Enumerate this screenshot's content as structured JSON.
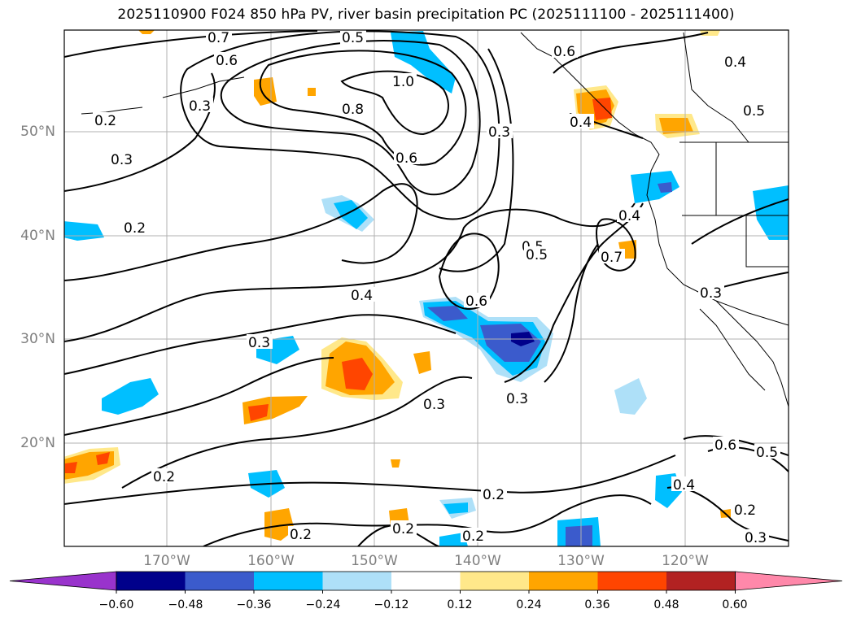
{
  "title": "2025110900 F024 850 hPa PV, river basin precipitation PC (2025111100 - 2025111400)",
  "axes": {
    "lat_labels": [
      "50°N",
      "40°N",
      "30°N",
      "20°N"
    ],
    "lon_labels": [
      "170°W",
      "160°W",
      "150°W",
      "140°W",
      "130°W",
      "120°W"
    ]
  },
  "contour_labels": [
    "0.7",
    "0.5",
    "0.6",
    "1.0",
    "0.8",
    "0.3",
    "0.2",
    "0.3",
    "0.2",
    "0.6",
    "0.4",
    "0.3",
    "0.4",
    "0.5",
    "0.3",
    "0.6",
    "0.5",
    "0.7",
    "0.4",
    "0.6",
    "0.3",
    "0.3",
    "0.3",
    "0.2",
    "0.2",
    "0.2",
    "0.2",
    "0.2",
    "0.4",
    "0.6",
    "0.5",
    "0.2",
    "0.3",
    "0.4",
    "0.5"
  ],
  "colorbar": {
    "ticks": [
      "−0.60",
      "−0.48",
      "−0.36",
      "−0.24",
      "−0.12",
      "0.12",
      "0.24",
      "0.36",
      "0.48",
      "0.60"
    ],
    "colors": [
      "#9933cc",
      "#00008b",
      "#3b5bcc",
      "#00bfff",
      "#aee0f8",
      "#ffffff",
      "#ffe88a",
      "#ffa500",
      "#ff4500",
      "#b22222",
      "#ff88aa"
    ]
  }
}
